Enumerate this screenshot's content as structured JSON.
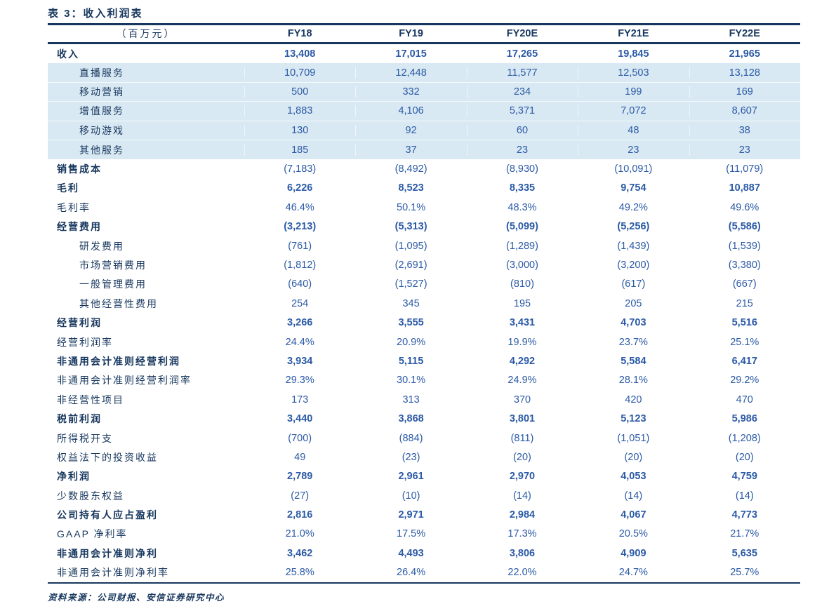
{
  "title": "表 3：收入利润表",
  "footer": "资料来源：公司财报、安信证券研究中心",
  "colors": {
    "navy": "#17375e",
    "value_blue": "#2b5aa6",
    "band_background": "#d9e9f3"
  },
  "table": {
    "unit_label": "（百万元）",
    "columns": [
      "FY18",
      "FY19",
      "FY20E",
      "FY21E",
      "FY22E"
    ],
    "rows": [
      {
        "label": "收入",
        "indent": 0,
        "band": false,
        "label_bold": true,
        "values_bold": true,
        "values": [
          "13,408",
          "17,015",
          "17,265",
          "19,845",
          "21,965"
        ]
      },
      {
        "label": "直播服务",
        "indent": 1,
        "band": true,
        "label_bold": false,
        "values_bold": false,
        "values": [
          "10,709",
          "12,448",
          "11,577",
          "12,503",
          "13,128"
        ]
      },
      {
        "label": "移动营销",
        "indent": 1,
        "band": true,
        "label_bold": false,
        "values_bold": false,
        "values": [
          "500",
          "332",
          "234",
          "199",
          "169"
        ]
      },
      {
        "label": "增值服务",
        "indent": 1,
        "band": true,
        "label_bold": false,
        "values_bold": false,
        "values": [
          "1,883",
          "4,106",
          "5,371",
          "7,072",
          "8,607"
        ]
      },
      {
        "label": "移动游戏",
        "indent": 1,
        "band": true,
        "label_bold": false,
        "values_bold": false,
        "values": [
          "130",
          "92",
          "60",
          "48",
          "38"
        ]
      },
      {
        "label": "其他服务",
        "indent": 1,
        "band": true,
        "label_bold": false,
        "values_bold": false,
        "values": [
          "185",
          "37",
          "23",
          "23",
          "23"
        ]
      },
      {
        "label": "销售成本",
        "indent": 0,
        "band": false,
        "label_bold": true,
        "values_bold": false,
        "values": [
          "(7,183)",
          "(8,492)",
          "(8,930)",
          "(10,091)",
          "(11,079)"
        ]
      },
      {
        "label": "毛利",
        "indent": 0,
        "band": false,
        "label_bold": true,
        "values_bold": true,
        "values": [
          "6,226",
          "8,523",
          "8,335",
          "9,754",
          "10,887"
        ]
      },
      {
        "label": "毛利率",
        "indent": 0,
        "band": false,
        "label_bold": false,
        "values_bold": false,
        "values": [
          "46.4%",
          "50.1%",
          "48.3%",
          "49.2%",
          "49.6%"
        ]
      },
      {
        "label": "经营费用",
        "indent": 0,
        "band": false,
        "label_bold": true,
        "values_bold": true,
        "values": [
          "(3,213)",
          "(5,313)",
          "(5,099)",
          "(5,256)",
          "(5,586)"
        ]
      },
      {
        "label": "研发费用",
        "indent": 1,
        "band": false,
        "label_bold": false,
        "values_bold": false,
        "values": [
          "(761)",
          "(1,095)",
          "(1,289)",
          "(1,439)",
          "(1,539)"
        ]
      },
      {
        "label": "市场营销费用",
        "indent": 1,
        "band": false,
        "label_bold": false,
        "values_bold": false,
        "values": [
          "(1,812)",
          "(2,691)",
          "(3,000)",
          "(3,200)",
          "(3,380)"
        ]
      },
      {
        "label": "一般管理费用",
        "indent": 1,
        "band": false,
        "label_bold": false,
        "values_bold": false,
        "values": [
          "(640)",
          "(1,527)",
          "(810)",
          "(617)",
          "(667)"
        ]
      },
      {
        "label": "其他经营性费用",
        "indent": 1,
        "band": false,
        "label_bold": false,
        "values_bold": false,
        "values": [
          "254",
          "345",
          "195",
          "205",
          "215"
        ]
      },
      {
        "label": "经营利润",
        "indent": 0,
        "band": false,
        "label_bold": true,
        "values_bold": true,
        "values": [
          "3,266",
          "3,555",
          "3,431",
          "4,703",
          "5,516"
        ]
      },
      {
        "label": "经营利润率",
        "indent": 0,
        "band": false,
        "label_bold": false,
        "values_bold": false,
        "values": [
          "24.4%",
          "20.9%",
          "19.9%",
          "23.7%",
          "25.1%"
        ]
      },
      {
        "label": "非通用会计准则经营利润",
        "indent": 0,
        "band": false,
        "label_bold": true,
        "values_bold": true,
        "values": [
          "3,934",
          "5,115",
          "4,292",
          "5,584",
          "6,417"
        ]
      },
      {
        "label": "非通用会计准则经营利润率",
        "indent": 0,
        "band": false,
        "label_bold": false,
        "values_bold": false,
        "values": [
          "29.3%",
          "30.1%",
          "24.9%",
          "28.1%",
          "29.2%"
        ]
      },
      {
        "label": "非经营性项目",
        "indent": 0,
        "band": false,
        "label_bold": false,
        "values_bold": false,
        "values": [
          "173",
          "313",
          "370",
          "420",
          "470"
        ]
      },
      {
        "label": "税前利润",
        "indent": 0,
        "band": false,
        "label_bold": true,
        "values_bold": true,
        "values": [
          "3,440",
          "3,868",
          "3,801",
          "5,123",
          "5,986"
        ]
      },
      {
        "label": "所得税开支",
        "indent": 0,
        "band": false,
        "label_bold": false,
        "values_bold": false,
        "values": [
          "(700)",
          "(884)",
          "(811)",
          "(1,051)",
          "(1,208)"
        ]
      },
      {
        "label": "权益法下的投资收益",
        "indent": 0,
        "band": false,
        "label_bold": false,
        "values_bold": false,
        "values": [
          "49",
          "(23)",
          "(20)",
          "(20)",
          "(20)"
        ]
      },
      {
        "label": "净利润",
        "indent": 0,
        "band": false,
        "label_bold": true,
        "values_bold": true,
        "values": [
          "2,789",
          "2,961",
          "2,970",
          "4,053",
          "4,759"
        ]
      },
      {
        "label": "少数股东权益",
        "indent": 0,
        "band": false,
        "label_bold": false,
        "values_bold": false,
        "values": [
          "(27)",
          "(10)",
          "(14)",
          "(14)",
          "(14)"
        ]
      },
      {
        "label": "公司持有人应占盈利",
        "indent": 0,
        "band": false,
        "label_bold": true,
        "values_bold": true,
        "values": [
          "2,816",
          "2,971",
          "2,984",
          "4,067",
          "4,773"
        ]
      },
      {
        "label": "GAAP 净利率",
        "indent": 0,
        "band": false,
        "label_bold": false,
        "values_bold": false,
        "values": [
          "21.0%",
          "17.5%",
          "17.3%",
          "20.5%",
          "21.7%"
        ]
      },
      {
        "label": "非通用会计准则净利",
        "indent": 0,
        "band": false,
        "label_bold": true,
        "values_bold": true,
        "values": [
          "3,462",
          "4,493",
          "3,806",
          "4,909",
          "5,635"
        ]
      },
      {
        "label": "非通用会计准则净利率",
        "indent": 0,
        "band": false,
        "label_bold": false,
        "values_bold": false,
        "values": [
          "25.8%",
          "26.4%",
          "22.0%",
          "24.7%",
          "25.7%"
        ]
      }
    ]
  }
}
